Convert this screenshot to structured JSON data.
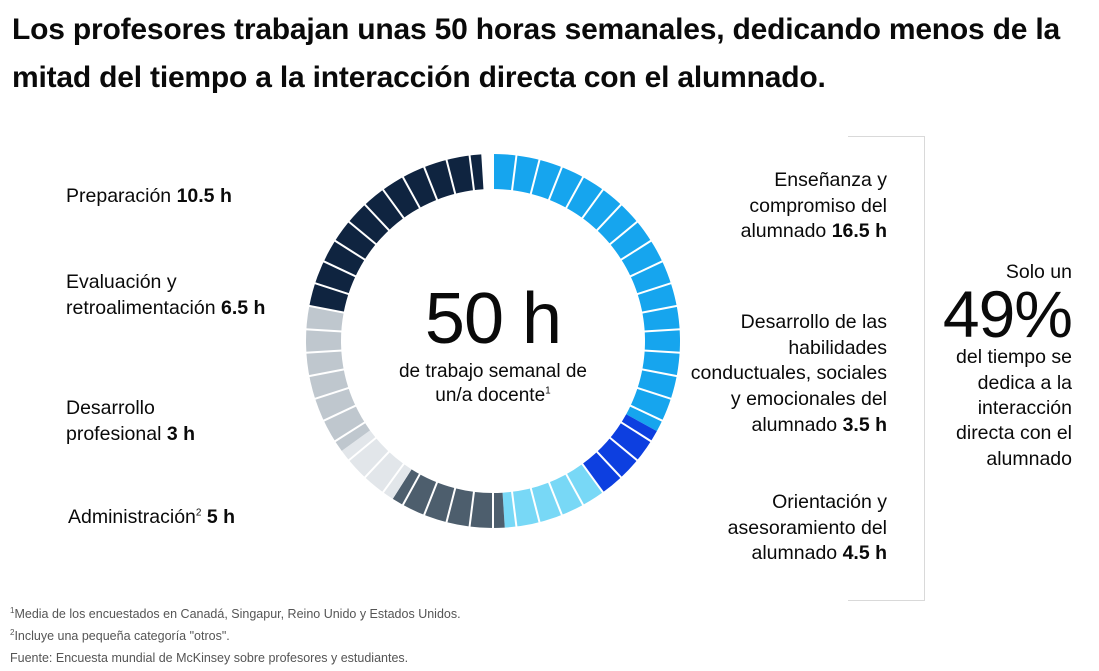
{
  "title": "Los profesores trabajan unas 50 horas semanales, dedicando menos de la mitad del tiempo a la interacción directa con el alumnado.",
  "center": {
    "value": "50 h",
    "subtitle": "de trabajo semanal de un/a docente",
    "footnote_ref": "1"
  },
  "side_stat": {
    "before": "Solo un",
    "percent": "49%",
    "after": "del tiempo se dedica a la interacción directa con el alumnado"
  },
  "labels": {
    "preparacion": {
      "name": "Preparación",
      "value": "10.5 h"
    },
    "evaluacion": {
      "name": "Evaluación y retroalimentación",
      "value": "6.5 h"
    },
    "desarrollo_prof": {
      "name": "Desarrollo profesional",
      "value": "3 h"
    },
    "administracion": {
      "name": "Administración",
      "sup": "2",
      "value": "5 h"
    },
    "ensenanza": {
      "name": "Enseñanza y compromiso del alumnado",
      "value": "16.5 h"
    },
    "habilidades": {
      "name": "Desarrollo de las habilidades conductuales, sociales y emocionales del alumnado",
      "value": "3.5 h"
    },
    "orientacion": {
      "name": "Orientación y asesoramiento del alumnado",
      "value": "4.5 h"
    }
  },
  "footnotes": {
    "f1_sup": "1",
    "f1": "Media de los encuestados en Canadá, Singapur, Reino Unido y Estados Unidos.",
    "f2_sup": "2",
    "f2": "Incluye una pequeña categoría \"otros\".",
    "source": "Fuente: Encuesta mundial de McKinsey sobre profesores y estudiantes."
  },
  "chart_data": {
    "type": "pie",
    "style": "segmented donut",
    "total_hours": 50,
    "segments_per_hour": 1,
    "slices": [
      {
        "label": "Enseñanza y compromiso del alumnado",
        "value": 16.5,
        "color": "#16a5ee"
      },
      {
        "label": "Desarrollo de las habilidades conductuales, sociales y emocionales del alumnado",
        "value": 3.5,
        "color": "#0d3fe0"
      },
      {
        "label": "Orientación y asesoramiento del alumnado",
        "value": 4.5,
        "color": "#78d8f6"
      },
      {
        "label": "Administración",
        "value": 5,
        "color": "#4d5e6d"
      },
      {
        "label": "Desarrollo profesional",
        "value": 3,
        "color": "#e2e6ea"
      },
      {
        "label": "Evaluación y retroalimentación",
        "value": 6.5,
        "color": "#bfc7ce"
      },
      {
        "label": "Preparación",
        "value": 10.5,
        "color": "#0f2440"
      }
    ]
  }
}
